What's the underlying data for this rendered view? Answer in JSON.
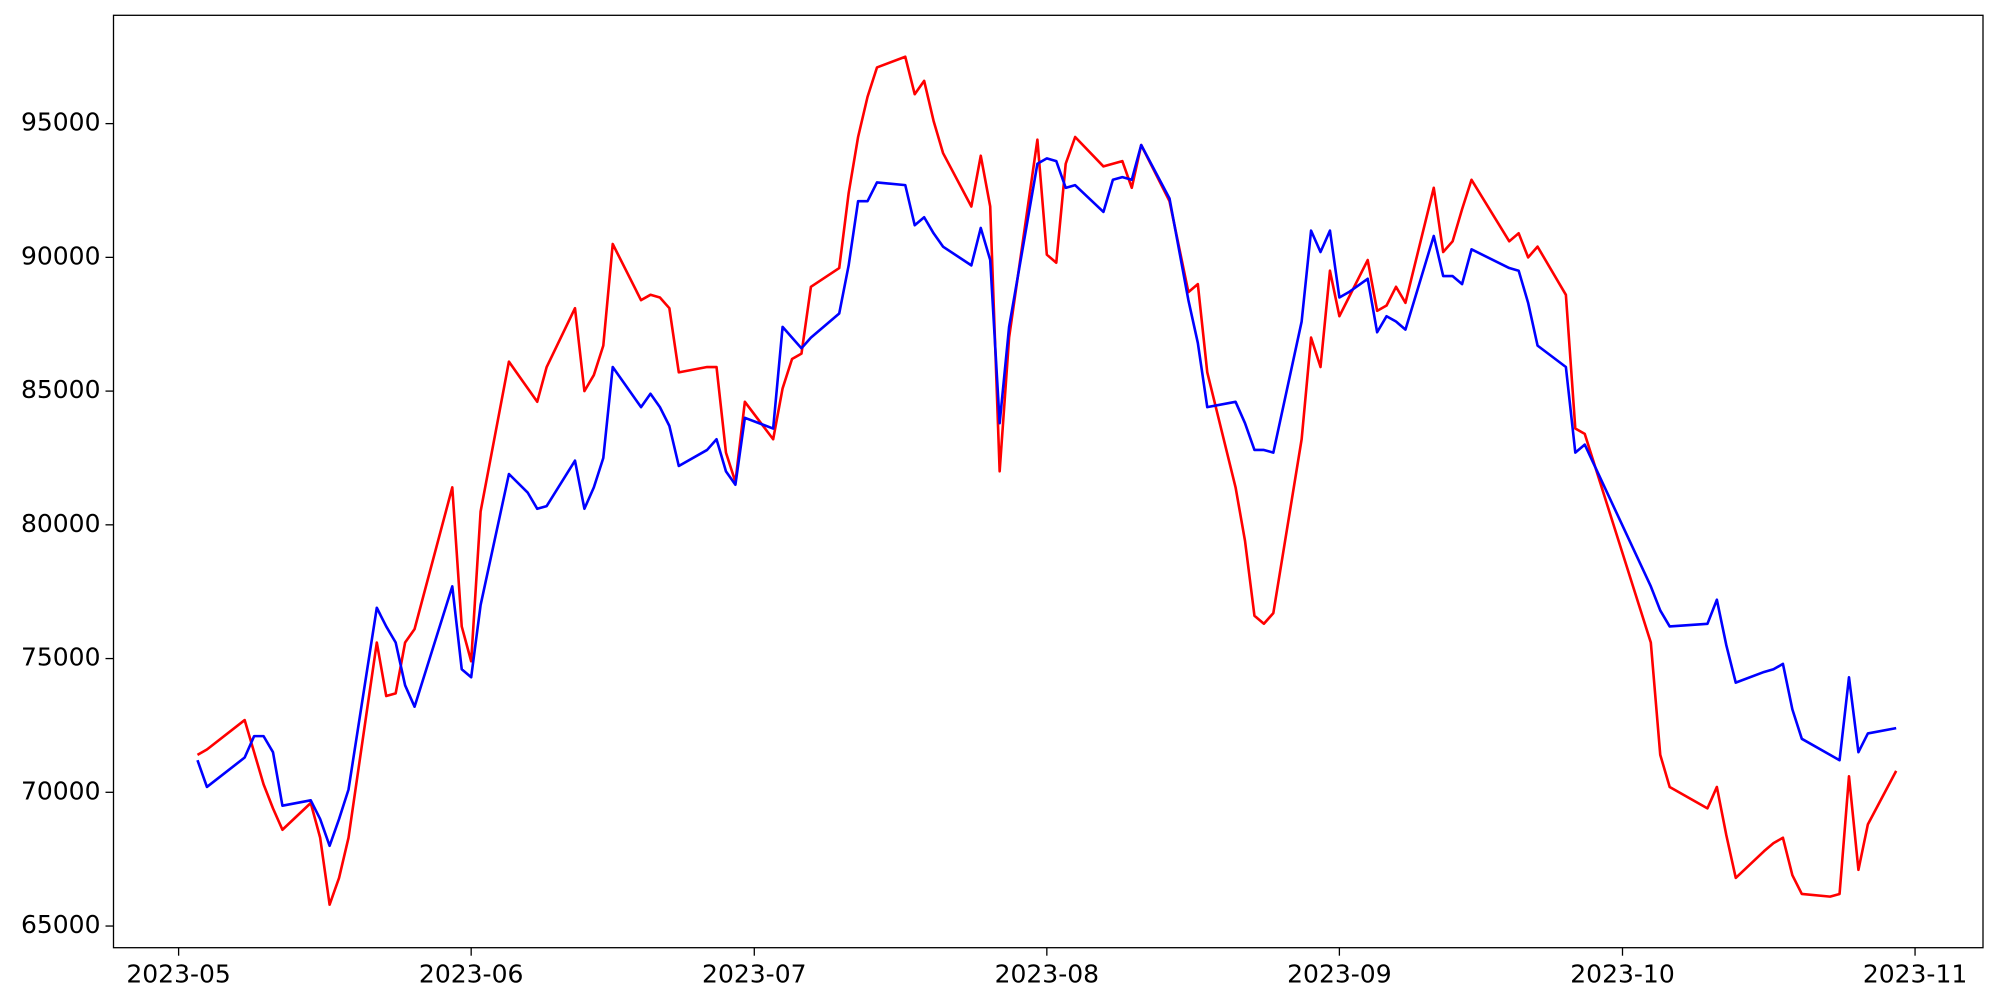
{
  "chart_data": {
    "type": "line",
    "x": [
      122,
      123,
      127,
      128,
      129,
      130,
      131,
      134,
      135,
      136,
      137,
      138,
      141,
      142,
      143,
      144,
      145,
      149,
      150,
      151,
      152,
      155,
      157,
      158,
      159,
      162,
      163,
      164,
      165,
      166,
      169,
      170,
      171,
      172,
      173,
      176,
      177,
      178,
      179,
      180,
      183,
      184,
      185,
      186,
      187,
      190,
      191,
      192,
      193,
      194,
      197,
      198,
      199,
      200,
      201,
      204,
      205,
      206,
      207,
      208,
      211,
      212,
      213,
      214,
      215,
      218,
      219,
      220,
      221,
      222,
      225,
      227,
      228,
      229,
      232,
      233,
      234,
      235,
      236,
      239,
      240,
      241,
      242,
      243,
      244,
      246,
      247,
      248,
      249,
      250,
      253,
      254,
      255,
      256,
      257,
      261,
      262,
      263,
      264,
      267,
      268,
      269,
      276,
      277,
      278,
      282,
      283,
      284,
      285,
      288,
      289,
      290,
      291,
      292,
      295,
      296,
      297,
      298,
      299,
      302
    ],
    "xlim": [
      113.1,
      311.2
    ],
    "xticks": [
      {
        "value": 120,
        "label": "2023-05"
      },
      {
        "value": 151,
        "label": "2023-06"
      },
      {
        "value": 181,
        "label": "2023-07"
      },
      {
        "value": 212,
        "label": "2023-08"
      },
      {
        "value": 243,
        "label": "2023-09"
      },
      {
        "value": 273,
        "label": "2023-10"
      },
      {
        "value": 304,
        "label": "2023-11"
      }
    ],
    "ylim": [
      64190,
      99050
    ],
    "yticks": [
      65000,
      70000,
      75000,
      80000,
      85000,
      90000,
      95000
    ],
    "grid": false,
    "series": [
      {
        "color": "#ff0000",
        "values": [
          71400,
          71600,
          72700,
          71500,
          70300,
          69400,
          68600,
          69600,
          68300,
          65800,
          66800,
          68300,
          75600,
          73600,
          73700,
          75600,
          76100,
          81400,
          76200,
          74900,
          80500,
          86100,
          85100,
          84600,
          85900,
          88100,
          85000,
          85600,
          86700,
          90500,
          88400,
          88600,
          88500,
          88100,
          85700,
          85900,
          85900,
          82700,
          81600,
          84600,
          83200,
          85100,
          86200,
          86400,
          88900,
          89600,
          92400,
          94500,
          96000,
          97100,
          97500,
          96100,
          96600,
          95100,
          93900,
          91900,
          93800,
          91900,
          82000,
          87000,
          94400,
          90100,
          89800,
          93500,
          94500,
          93400,
          93500,
          93600,
          92600,
          94200,
          92100,
          88700,
          89000,
          85700,
          81400,
          79400,
          76600,
          76300,
          76700,
          83200,
          87000,
          85900,
          89500,
          87800,
          88500,
          89900,
          88000,
          88200,
          88900,
          88300,
          92600,
          90200,
          90600,
          91800,
          92900,
          90600,
          90900,
          90000,
          90400,
          88600,
          83600,
          83400,
          75600,
          71400,
          70200,
          69400,
          70200,
          68400,
          66800,
          67800,
          68100,
          68300,
          66900,
          66200,
          66100,
          66200,
          70600,
          67100,
          68800,
          70800
        ]
      },
      {
        "color": "#0000ff",
        "values": [
          71200,
          70200,
          71300,
          72100,
          72100,
          71500,
          69500,
          69700,
          69000,
          68000,
          69000,
          70100,
          76900,
          76200,
          75600,
          74000,
          73200,
          77700,
          74600,
          74300,
          77000,
          81900,
          81200,
          80600,
          80700,
          82400,
          80600,
          81400,
          82500,
          85900,
          84400,
          84900,
          84400,
          83700,
          82200,
          82800,
          83200,
          82000,
          81500,
          84000,
          83600,
          87400,
          87000,
          86600,
          87000,
          87900,
          89700,
          92100,
          92100,
          92800,
          92700,
          91200,
          91500,
          90900,
          90400,
          89700,
          91100,
          89900,
          83800,
          87400,
          93500,
          93700,
          93600,
          92600,
          92700,
          91700,
          92900,
          93000,
          92900,
          94200,
          92200,
          88400,
          86800,
          84400,
          84600,
          83800,
          82800,
          82800,
          82700,
          87600,
          91000,
          90200,
          91000,
          88500,
          88700,
          89200,
          87200,
          87800,
          87600,
          87300,
          90800,
          89300,
          89300,
          89000,
          90300,
          89600,
          89500,
          88300,
          86700,
          85900,
          82700,
          83000,
          77700,
          76800,
          76200,
          76300,
          77200,
          75500,
          74100,
          74500,
          74600,
          74800,
          73100,
          72000,
          71400,
          71200,
          74300,
          71500,
          72200,
          72400
        ]
      }
    ]
  }
}
